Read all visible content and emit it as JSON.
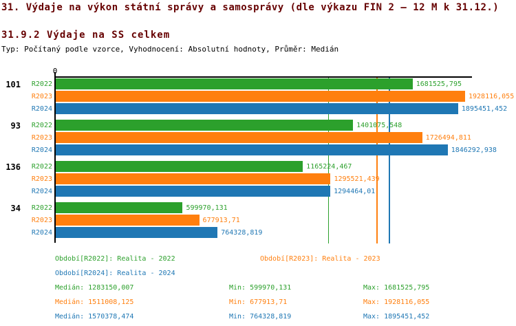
{
  "header": {
    "title": "31. Výdaje na výkon státní správy a samosprávy (dle výkazu FIN 2 – 12 M k 31.12.)",
    "subtitle": "31.9.2 Výdaje na SS celkem",
    "meta": "Typ: Počítaný podle vzorce, Vyhodnocení: Absolutní hodnoty, Průměr: Medián"
  },
  "colors": {
    "title": "#660000",
    "axis": "#000000",
    "R2022": "#2ca02c",
    "R2023": "#ff7f0e",
    "R2024": "#1f77b4"
  },
  "chart_data": {
    "type": "bar",
    "orientation": "horizontal",
    "axis_zero_label": "0",
    "xlim": [
      0,
      1928116.055
    ],
    "grid": false,
    "series": [
      "R2022",
      "R2023",
      "R2024"
    ],
    "groups": [
      {
        "label": "101",
        "bars": [
          {
            "series": "R2022",
            "value": 1681525.795,
            "display": "1681525,795"
          },
          {
            "series": "R2023",
            "value": 1928116.055,
            "display": "1928116,055"
          },
          {
            "series": "R2024",
            "value": 1895451.452,
            "display": "1895451,452"
          }
        ]
      },
      {
        "label": "93",
        "bars": [
          {
            "series": "R2022",
            "value": 1401075.548,
            "display": "1401075,548"
          },
          {
            "series": "R2023",
            "value": 1726494.811,
            "display": "1726494,811"
          },
          {
            "series": "R2024",
            "value": 1846292.938,
            "display": "1846292,938"
          }
        ]
      },
      {
        "label": "136",
        "bars": [
          {
            "series": "R2022",
            "value": 1165224.467,
            "display": "1165224,467"
          },
          {
            "series": "R2023",
            "value": 1295521.439,
            "display": "1295521,439"
          },
          {
            "series": "R2024",
            "value": 1294464.01,
            "display": "1294464,01"
          }
        ]
      },
      {
        "label": "34",
        "bars": [
          {
            "series": "R2022",
            "value": 599970.131,
            "display": "599970,131"
          },
          {
            "series": "R2023",
            "value": 677913.71,
            "display": "677913,71"
          },
          {
            "series": "R2024",
            "value": 764328.819,
            "display": "764328,819"
          }
        ]
      }
    ],
    "median_lines": [
      {
        "series": "R2022",
        "value": 1283150.007
      },
      {
        "series": "R2023",
        "value": 1511008.125
      },
      {
        "series": "R2024",
        "value": 1570378.474
      }
    ]
  },
  "legend": {
    "items": [
      {
        "series": "R2022",
        "label": "Období[R2022]: Realita - 2022"
      },
      {
        "series": "R2023",
        "label": "Období[R2023]: Realita - 2023"
      },
      {
        "series": "R2024",
        "label": "Období[R2024]: Realita - 2024"
      }
    ]
  },
  "stats": {
    "rows": [
      {
        "series": "R2022",
        "median": "Medián: 1283150,007",
        "min": "Min: 599970,131",
        "max": "Max: 1681525,795"
      },
      {
        "series": "R2023",
        "median": "Medián: 1511008,125",
        "min": "Min: 677913,71",
        "max": "Max: 1928116,055"
      },
      {
        "series": "R2024",
        "median": "Medián: 1570378,474",
        "min": "Min: 764328,819",
        "max": "Max: 1895451,452"
      }
    ]
  }
}
